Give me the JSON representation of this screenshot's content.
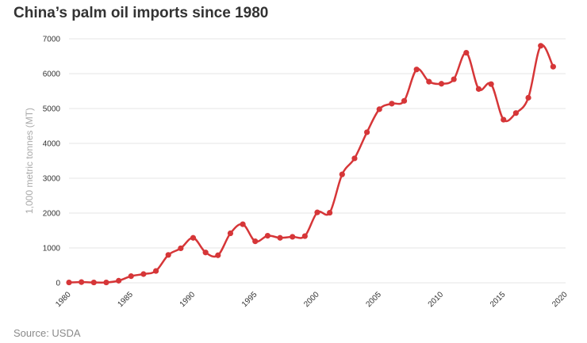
{
  "source_label": "Source: USDA",
  "chart_data": {
    "type": "line",
    "title": "China’s palm oil imports since 1980",
    "xlabel": "",
    "ylabel": "1,000 metric tonnes (MT)",
    "x": [
      1980,
      1981,
      1982,
      1983,
      1984,
      1985,
      1986,
      1987,
      1988,
      1989,
      1990,
      1991,
      1992,
      1993,
      1994,
      1995,
      1996,
      1997,
      1998,
      1999,
      2000,
      2001,
      2002,
      2003,
      2004,
      2005,
      2006,
      2007,
      2008,
      2009,
      2010,
      2011,
      2012,
      2013,
      2014,
      2015,
      2016,
      2017,
      2018,
      2019
    ],
    "series": [
      {
        "name": "Palm oil imports",
        "color": "#d63638",
        "values": [
          10,
          20,
          10,
          10,
          60,
          190,
          250,
          340,
          800,
          990,
          1290,
          870,
          790,
          1420,
          1680,
          1190,
          1350,
          1290,
          1320,
          1340,
          2020,
          2010,
          3110,
          3570,
          4320,
          4980,
          5140,
          5220,
          6120,
          5770,
          5710,
          5840,
          6600,
          5560,
          5700,
          4680,
          4870,
          5310,
          6800,
          6200
        ]
      }
    ],
    "xlim": [
      1980,
      2020
    ],
    "ylim": [
      0,
      7000
    ],
    "x_ticks": [
      "1980",
      "1985",
      "1990",
      "1995",
      "2000",
      "2005",
      "2010",
      "2015",
      "2020"
    ],
    "y_ticks": [
      "0",
      "1000",
      "2000",
      "3000",
      "4000",
      "5000",
      "6000",
      "7000"
    ],
    "grid": true
  }
}
